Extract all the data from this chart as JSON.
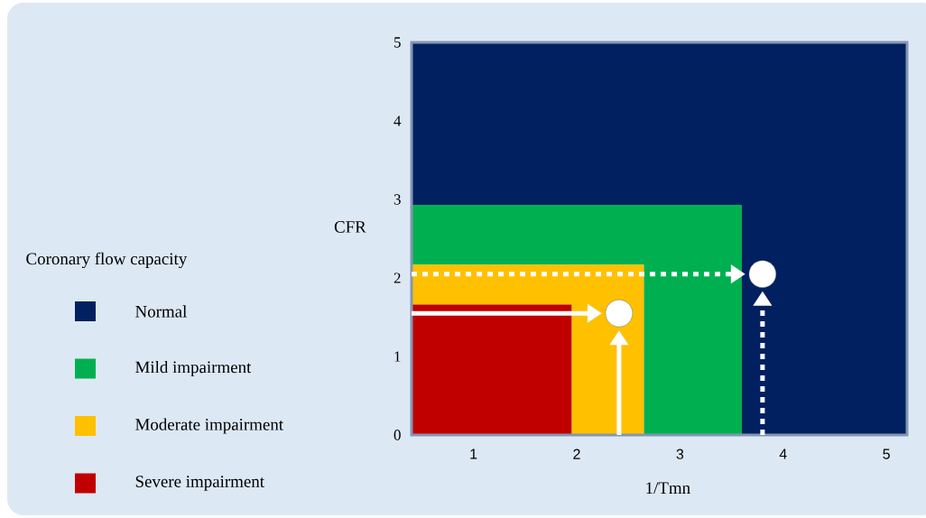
{
  "chart_data": {
    "type": "area",
    "stacked": true,
    "xlabel": "1/Tmn",
    "ylabel": "CFR",
    "legend_title": "Coronary flow capacity",
    "xlim": [
      0.4,
      5.2
    ],
    "ylim": [
      0,
      5
    ],
    "xticks": [
      1,
      2,
      3,
      4,
      5
    ],
    "yticks": [
      0,
      1,
      2,
      3,
      4,
      5
    ],
    "legend": "left",
    "x": [
      0.4,
      1.95,
      1.95,
      2.65,
      2.65,
      3.6,
      3.6,
      5.2
    ],
    "series": [
      {
        "name": "Severe impairment",
        "color": "#c00000",
        "values": [
          1.66,
          1.66,
          0,
          0,
          0,
          0,
          0,
          0
        ]
      },
      {
        "name": "Moderate impairment",
        "color": "#ffc000",
        "values": [
          0.51,
          0.51,
          2.17,
          2.17,
          0,
          0,
          0,
          0
        ]
      },
      {
        "name": "Mild impairment",
        "color": "#00b050",
        "values": [
          0.76,
          0.76,
          0.76,
          0.76,
          2.93,
          2.93,
          0,
          0
        ]
      },
      {
        "name": "Normal",
        "color": "#002060",
        "values": [
          2.07,
          2.07,
          2.07,
          2.07,
          2.07,
          2.07,
          5,
          5
        ]
      },
      {
        "type": "scatter",
        "color": "#ffffff",
        "line_style": "solid",
        "x": [
          2.41
        ],
        "values": [
          1.55
        ]
      },
      {
        "type": "scatter",
        "color": "#ffffff",
        "line_style": "dotted",
        "x": [
          3.8
        ],
        "values": [
          2.05
        ]
      }
    ]
  }
}
